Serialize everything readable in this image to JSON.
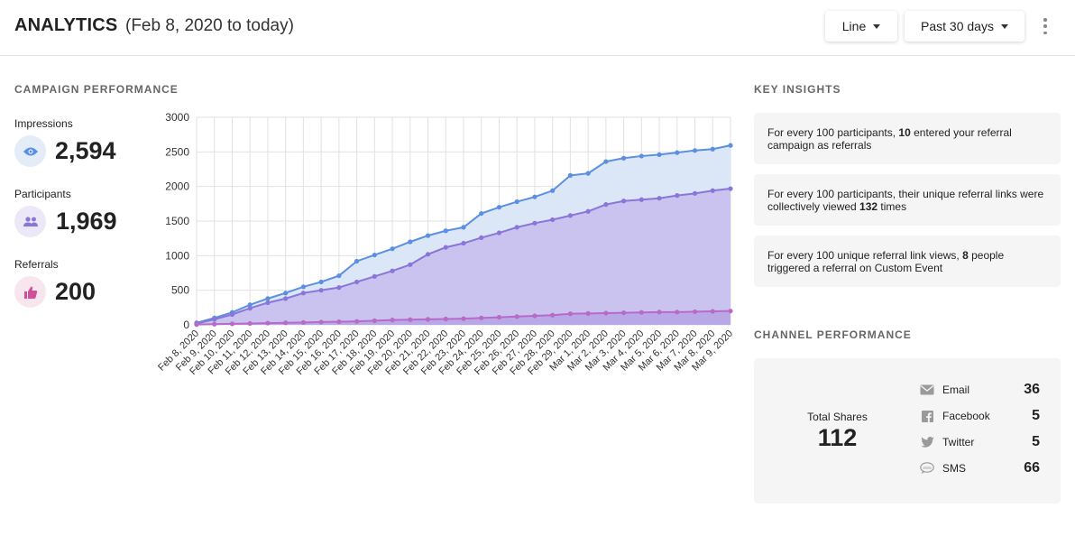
{
  "header": {
    "title": "ANALYTICS",
    "date_range_text": "(Feb 8, 2020 to today)",
    "chart_type_select": "Line",
    "period_select": "Past 30 days"
  },
  "campaign": {
    "section_title": "CAMPAIGN PERFORMANCE",
    "stats": [
      {
        "label": "Impressions",
        "value": "2,594",
        "icon": "eye-icon"
      },
      {
        "label": "Participants",
        "value": "1,969",
        "icon": "people-icon"
      },
      {
        "label": "Referrals",
        "value": "200",
        "icon": "thumbs-up-icon"
      }
    ]
  },
  "chart_data": {
    "type": "area",
    "categories": [
      "Feb 8, 2020",
      "Feb 9, 2020",
      "Feb 10, 2020",
      "Feb 11, 2020",
      "Feb 12, 2020",
      "Feb 13, 2020",
      "Feb 14, 2020",
      "Feb 15, 2020",
      "Feb 16, 2020",
      "Feb 17, 2020",
      "Feb 18, 2020",
      "Feb 19, 2020",
      "Feb 20, 2020",
      "Feb 21, 2020",
      "Feb 22, 2020",
      "Feb 23, 2020",
      "Feb 24, 2020",
      "Feb 25, 2020",
      "Feb 26, 2020",
      "Feb 27, 2020",
      "Feb 28, 2020",
      "Feb 29, 2020",
      "Mar 1, 2020",
      "Mar 2, 2020",
      "Mar 3, 2020",
      "Mar 4, 2020",
      "Mar 5, 2020",
      "Mar 6, 2020",
      "Mar 7, 2020",
      "Mar 8, 2020",
      "Mar 9, 2020"
    ],
    "series": [
      {
        "values": [
          30,
          100,
          180,
          290,
          380,
          460,
          550,
          620,
          710,
          920,
          1010,
          1100,
          1200,
          1290,
          1360,
          1410,
          1610,
          1700,
          1780,
          1850,
          1940,
          2160,
          2190,
          2360,
          2410,
          2440,
          2460,
          2490,
          2520,
          2540,
          2594
        ],
        "color": "#5b8fe0",
        "fill": "#dbe6f7"
      },
      {
        "values": [
          20,
          80,
          150,
          240,
          320,
          380,
          460,
          500,
          540,
          620,
          700,
          780,
          870,
          1020,
          1120,
          1180,
          1260,
          1330,
          1410,
          1470,
          1520,
          1580,
          1640,
          1740,
          1790,
          1810,
          1830,
          1870,
          1900,
          1940,
          1969
        ],
        "color": "#8a75d8",
        "fill": "#cbc3ef"
      },
      {
        "values": [
          5,
          10,
          15,
          20,
          25,
          30,
          35,
          40,
          45,
          50,
          60,
          70,
          75,
          80,
          85,
          90,
          100,
          110,
          120,
          130,
          140,
          160,
          165,
          170,
          175,
          180,
          185,
          185,
          190,
          195,
          200
        ],
        "color": "#b76ac7",
        "fill": "#b9a8e6"
      }
    ],
    "ylim": [
      0,
      3000
    ],
    "yticks": [
      "0",
      "500",
      "1000",
      "1500",
      "2000",
      "2500",
      "3000"
    ],
    "grid": true
  },
  "insights": {
    "section_title": "KEY INSIGHTS",
    "items": [
      {
        "pre": "For every 100 participants, ",
        "bold": "10",
        "post": " entered your referral campaign as referrals"
      },
      {
        "pre": "For every 100 participants, their unique referral links were collectively viewed ",
        "bold": "132",
        "post": " times"
      },
      {
        "pre": "For every 100 unique referral link views, ",
        "bold": "8",
        "post": " people triggered a referral on Custom Event"
      }
    ]
  },
  "channels": {
    "section_title": "CHANNEL PERFORMANCE",
    "total_label": "Total Shares",
    "total_value": "112",
    "items": [
      {
        "name": "Email",
        "value": "36",
        "icon": "email-icon"
      },
      {
        "name": "Facebook",
        "value": "5",
        "icon": "facebook-icon"
      },
      {
        "name": "Twitter",
        "value": "5",
        "icon": "twitter-icon"
      },
      {
        "name": "SMS",
        "value": "66",
        "icon": "sms-icon"
      }
    ]
  }
}
